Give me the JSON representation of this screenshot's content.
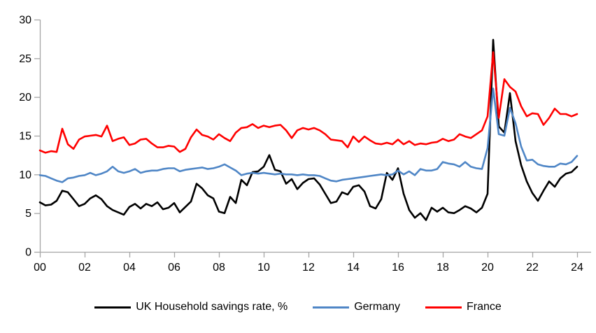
{
  "chart_data": {
    "type": "line",
    "title": "",
    "frequency": "quarterly",
    "x_start_year": 2000,
    "x_axis": {
      "tick_labels": [
        "00",
        "02",
        "04",
        "06",
        "08",
        "10",
        "12",
        "14",
        "16",
        "18",
        "20",
        "22",
        "24"
      ],
      "tick_step_years": 2
    },
    "y_axis": {
      "ticks": [
        0,
        5,
        10,
        15,
        20,
        25,
        30
      ],
      "range": [
        0,
        30
      ]
    },
    "grid": false,
    "legend_position": "bottom",
    "series": [
      {
        "name": "UK Household savings rate, %",
        "color": "#000000",
        "values": [
          6.4,
          6.0,
          6.1,
          6.6,
          7.9,
          7.7,
          6.8,
          5.9,
          6.2,
          6.9,
          7.3,
          6.8,
          5.9,
          5.4,
          5.1,
          4.8,
          5.8,
          6.2,
          5.6,
          6.2,
          5.9,
          6.4,
          5.5,
          5.7,
          6.3,
          5.1,
          5.8,
          6.5,
          8.8,
          8.2,
          7.3,
          6.9,
          5.2,
          5.0,
          7.1,
          6.3,
          9.3,
          8.6,
          10.3,
          10.4,
          11.0,
          12.5,
          10.6,
          10.4,
          8.8,
          9.4,
          8.1,
          8.9,
          9.4,
          9.5,
          8.7,
          7.5,
          6.3,
          6.5,
          7.7,
          7.4,
          8.4,
          8.6,
          7.8,
          5.9,
          5.6,
          6.8,
          10.2,
          9.3,
          10.8,
          7.5,
          5.4,
          4.4,
          5.0,
          4.1,
          5.7,
          5.2,
          5.7,
          5.1,
          5.0,
          5.4,
          5.9,
          5.6,
          5.1,
          5.7,
          7.5,
          27.4,
          16.2,
          15.4,
          20.5,
          14.3,
          11.2,
          9.1,
          7.6,
          6.6,
          7.9,
          9.1,
          8.4,
          9.5,
          10.1,
          10.3,
          11.0
        ]
      },
      {
        "name": "Germany",
        "color": "#4f86c6",
        "values": [
          9.9,
          9.8,
          9.5,
          9.2,
          9.0,
          9.5,
          9.6,
          9.8,
          9.9,
          10.2,
          9.9,
          10.1,
          10.4,
          11.0,
          10.4,
          10.2,
          10.4,
          10.7,
          10.2,
          10.4,
          10.5,
          10.5,
          10.7,
          10.8,
          10.8,
          10.4,
          10.6,
          10.7,
          10.8,
          10.9,
          10.7,
          10.8,
          11.0,
          11.3,
          10.9,
          10.5,
          9.9,
          10.1,
          10.2,
          10.1,
          10.2,
          10.1,
          10.0,
          10.1,
          10.0,
          10.0,
          9.9,
          10.0,
          9.9,
          9.9,
          9.8,
          9.5,
          9.2,
          9.1,
          9.3,
          9.4,
          9.5,
          9.6,
          9.7,
          9.8,
          9.9,
          10.0,
          9.9,
          10.0,
          10.5,
          10.0,
          10.4,
          9.9,
          10.7,
          10.5,
          10.5,
          10.7,
          11.6,
          11.4,
          11.3,
          11.0,
          11.6,
          11.0,
          10.8,
          10.7,
          13.4,
          21.1,
          15.2,
          15.0,
          18.6,
          16.6,
          13.6,
          11.8,
          11.9,
          11.3,
          11.1,
          11.0,
          11.0,
          11.4,
          11.3,
          11.6,
          12.4
        ]
      },
      {
        "name": "France",
        "color": "#ff0000",
        "values": [
          13.1,
          12.8,
          13.0,
          12.9,
          15.9,
          13.9,
          13.3,
          14.5,
          14.9,
          15.0,
          15.1,
          14.9,
          16.3,
          14.3,
          14.6,
          14.8,
          13.8,
          14.0,
          14.5,
          14.6,
          14.0,
          13.5,
          13.5,
          13.7,
          13.6,
          12.9,
          13.3,
          14.8,
          15.8,
          15.1,
          14.9,
          14.5,
          15.2,
          14.7,
          14.3,
          15.4,
          16.0,
          16.1,
          16.5,
          16.0,
          16.3,
          16.1,
          16.3,
          16.4,
          15.7,
          14.7,
          15.7,
          16.0,
          15.8,
          16.0,
          15.7,
          15.2,
          14.5,
          14.4,
          14.3,
          13.5,
          14.9,
          14.2,
          14.9,
          14.4,
          14.0,
          13.9,
          14.1,
          13.9,
          14.5,
          13.9,
          14.3,
          13.8,
          14.0,
          13.9,
          14.1,
          14.2,
          14.6,
          14.3,
          14.5,
          15.2,
          14.9,
          14.7,
          15.2,
          15.7,
          17.5,
          25.8,
          17.3,
          22.3,
          21.3,
          20.7,
          18.8,
          17.5,
          17.9,
          17.8,
          16.4,
          17.3,
          18.5,
          17.8,
          17.8,
          17.5,
          17.8
        ]
      }
    ],
    "colors": {
      "axis": "#a6a6a6",
      "text": "#000000",
      "background": "#ffffff"
    }
  }
}
